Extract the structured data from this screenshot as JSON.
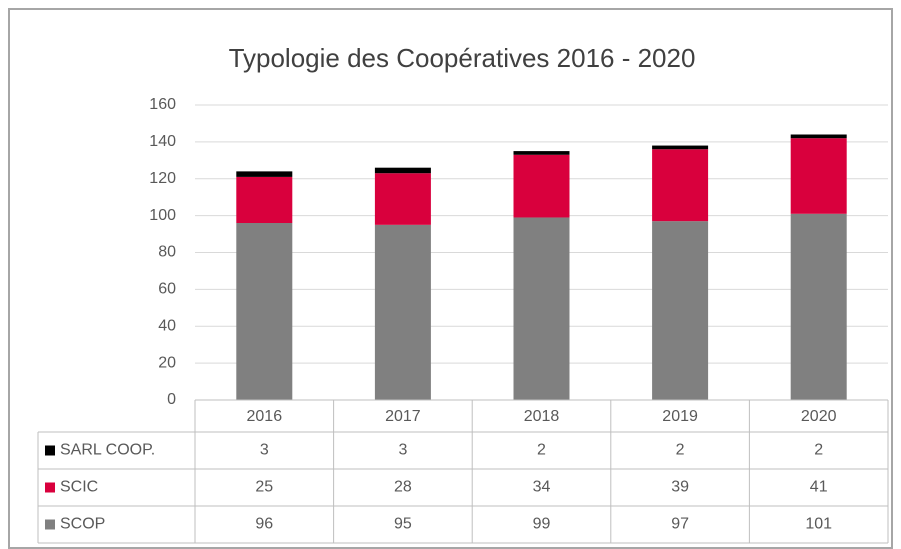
{
  "chart_data": {
    "type": "bar",
    "stacked": true,
    "title": "Typologie des Coopératives 2016 - 2020",
    "categories": [
      "2016",
      "2017",
      "2018",
      "2019",
      "2020"
    ],
    "series": [
      {
        "name": "SCOP",
        "color": "#808080",
        "values": [
          96,
          95,
          99,
          97,
          101
        ]
      },
      {
        "name": "SCIC",
        "color": "#d9003d",
        "values": [
          25,
          28,
          34,
          39,
          41
        ]
      },
      {
        "name": "SARL COOP.",
        "color": "#000000",
        "values": [
          3,
          3,
          2,
          2,
          2
        ]
      }
    ],
    "ylim": [
      0,
      160
    ],
    "yticks": [
      0,
      20,
      40,
      60,
      80,
      100,
      120,
      140,
      160
    ],
    "grid": true,
    "data_table": true
  }
}
